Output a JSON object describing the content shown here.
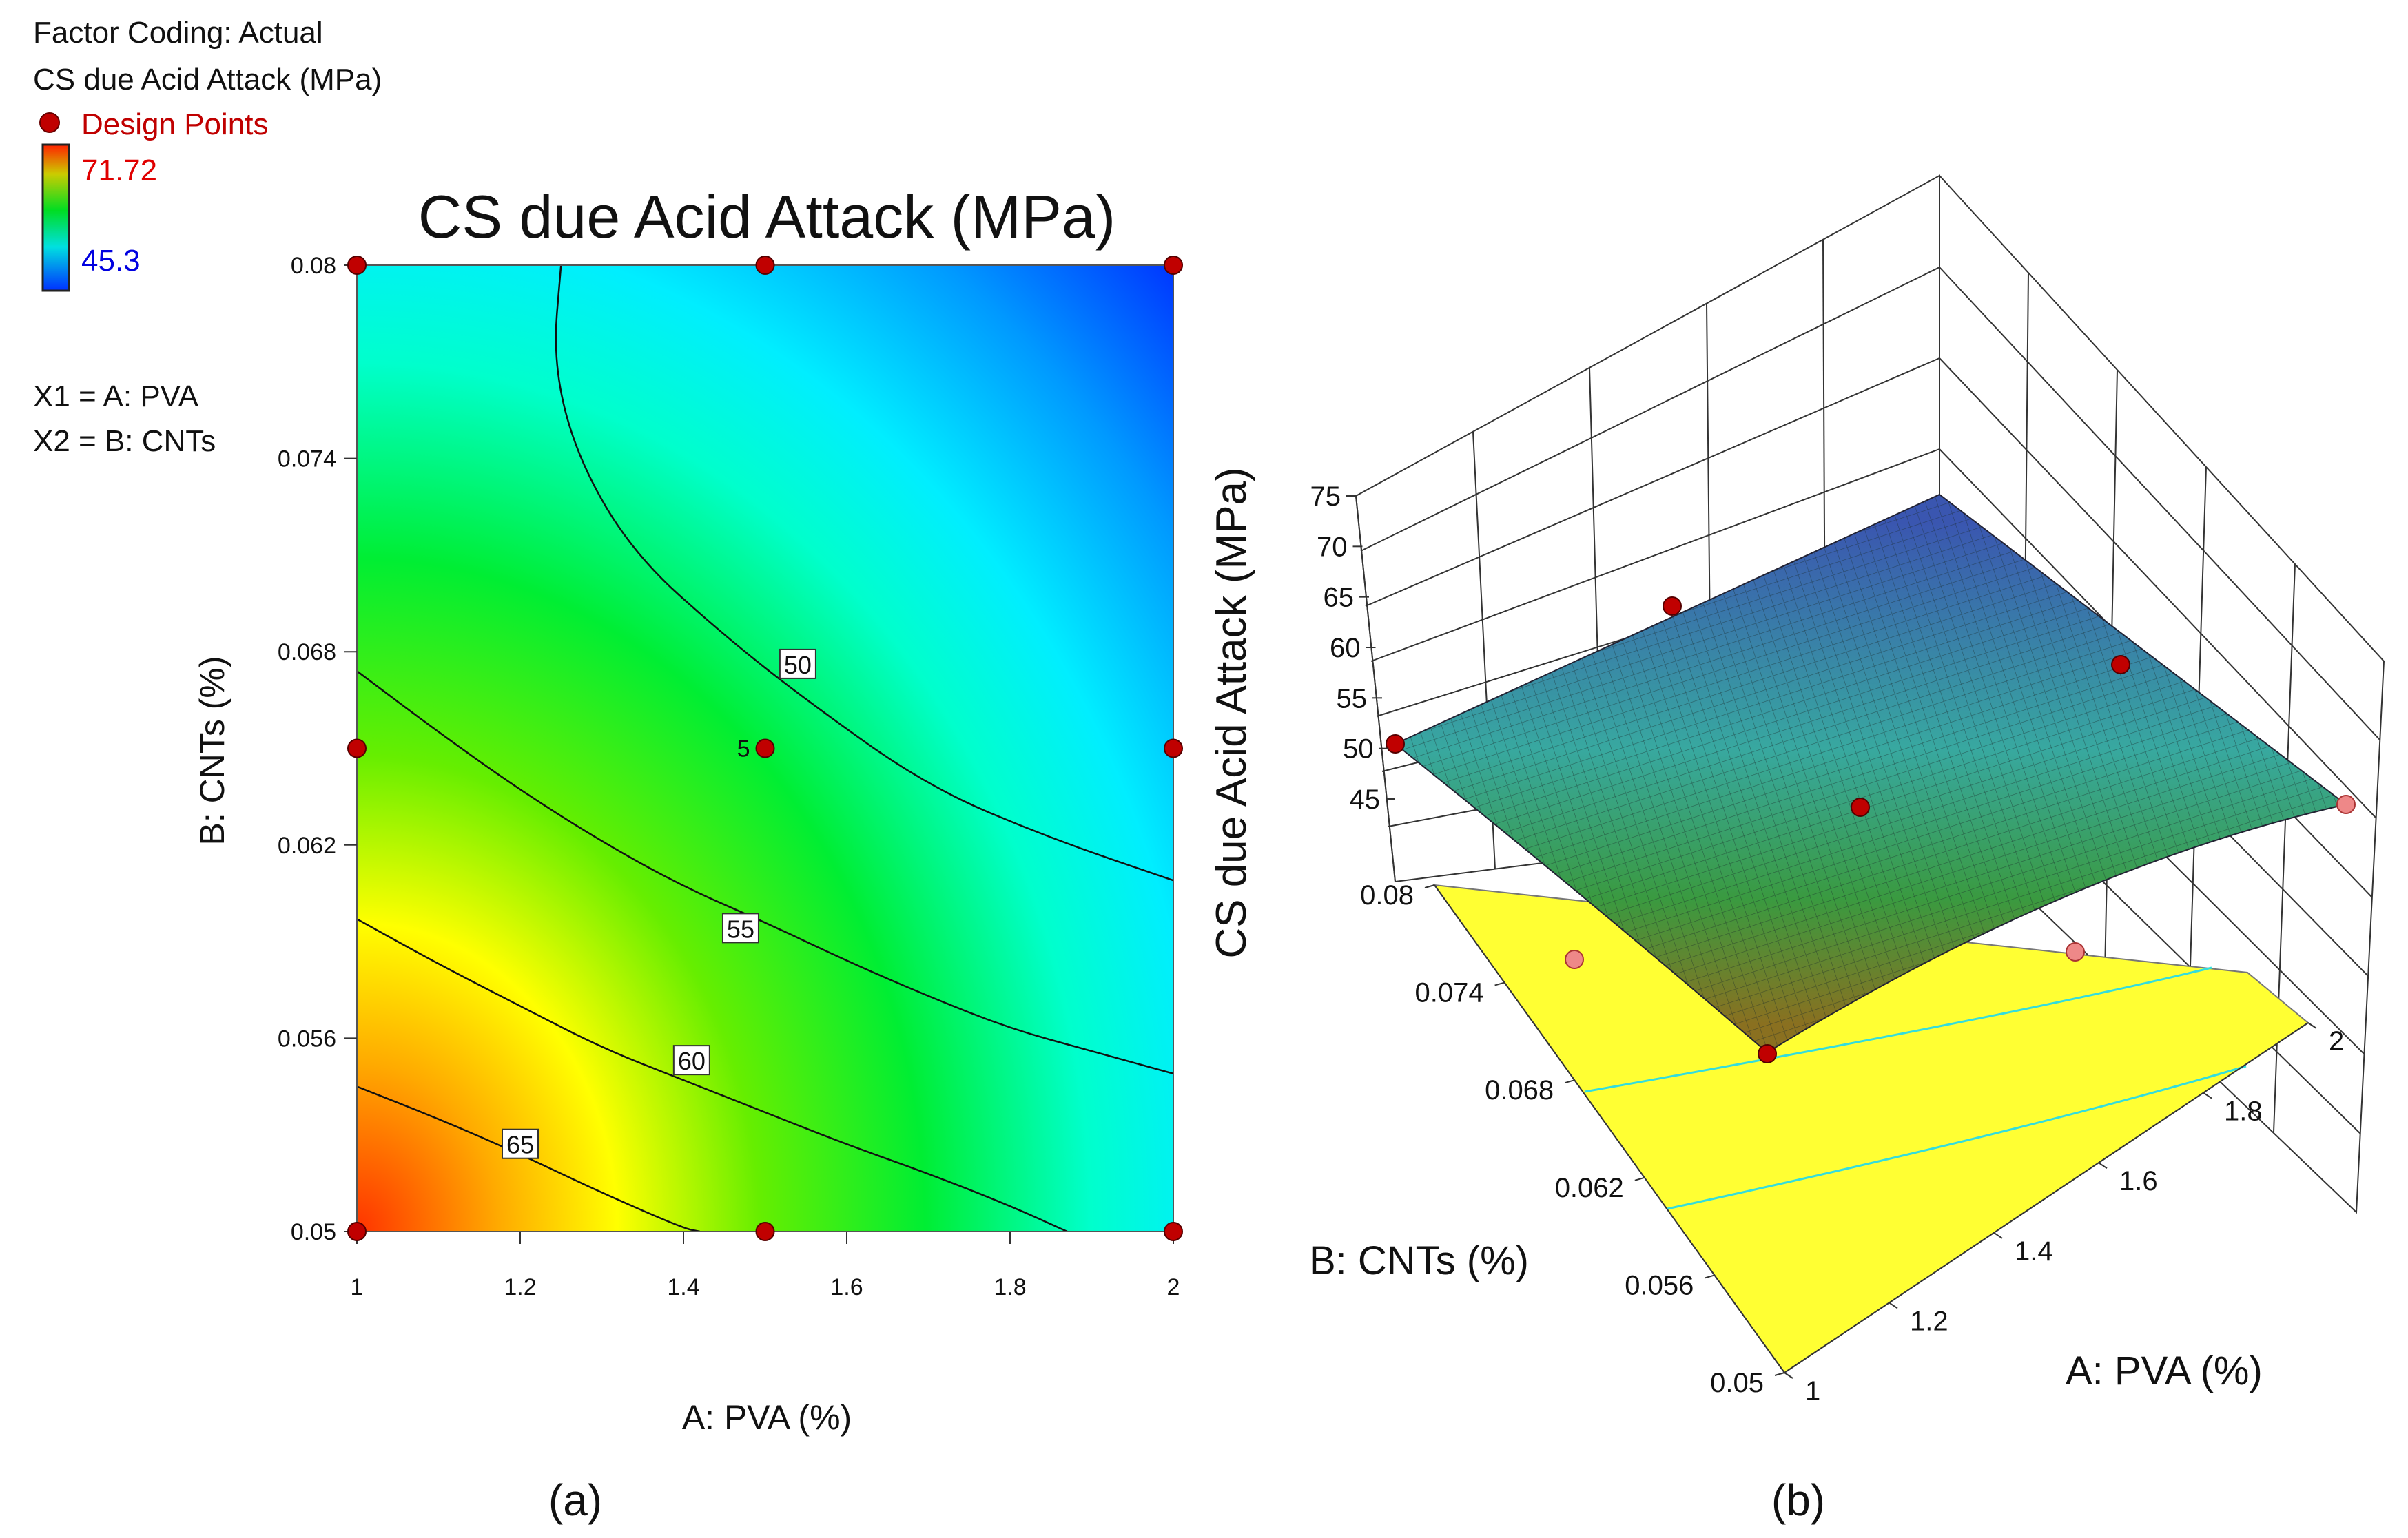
{
  "header": {
    "factor_coding": "Factor Coding: Actual",
    "response": "CS due Acid Attack (MPa)",
    "design_points": "Design Points",
    "legend_max": "71.72",
    "legend_min": "45.3",
    "x1_def": "X1 = A: PVA",
    "x2_def": "X2 = B: CNTs"
  },
  "colors": {
    "design_point": "#c00000",
    "legend_max_text": "#e00000",
    "legend_min_text": "#0000e0",
    "design_points_text": "#c00000",
    "surface_floor": "#ffff33",
    "floor_contour": "#33dddd"
  },
  "chart_data": [
    {
      "type": "contour",
      "panel_label": "(a)",
      "title": "CS due Acid Attack (MPa)",
      "xlabel": "A: PVA (%)",
      "ylabel": "B: CNTs (%)",
      "xlim": [
        1,
        2
      ],
      "ylim": [
        0.05,
        0.08
      ],
      "x_ticks": [
        "1",
        "1.2",
        "1.4",
        "1.6",
        "1.8",
        "2"
      ],
      "y_ticks": [
        "0.05",
        "0.056",
        "0.062",
        "0.068",
        "0.074",
        "0.08"
      ],
      "color_range": [
        45.3,
        71.72
      ],
      "contour_levels": [
        {
          "level": 50,
          "label": "50",
          "points": [
            [
              1.25,
              0.08
            ],
            [
              1.24,
              0.077
            ],
            [
              1.27,
              0.074
            ],
            [
              1.34,
              0.071
            ],
            [
              1.45,
              0.0685
            ],
            [
              1.55,
              0.0665
            ],
            [
              1.7,
              0.0638
            ],
            [
              1.85,
              0.0622
            ],
            [
              2.0,
              0.0609
            ]
          ],
          "label_at": [
            1.54,
            0.0676
          ]
        },
        {
          "level": 55,
          "label": "55",
          "points": [
            [
              1.0,
              0.0674
            ],
            [
              1.1,
              0.0655
            ],
            [
              1.2,
              0.0637
            ],
            [
              1.3,
              0.0621
            ],
            [
              1.4,
              0.0607
            ],
            [
              1.5,
              0.0596
            ],
            [
              1.6,
              0.0584
            ],
            [
              1.7,
              0.0573
            ],
            [
              1.8,
              0.0563
            ],
            [
              1.9,
              0.0556
            ],
            [
              2.0,
              0.0549
            ]
          ],
          "label_at": [
            1.47,
            0.0594
          ]
        },
        {
          "level": 60,
          "label": "60",
          "points": [
            [
              1.0,
              0.0597
            ],
            [
              1.1,
              0.0583
            ],
            [
              1.2,
              0.057
            ],
            [
              1.3,
              0.0557
            ],
            [
              1.4,
              0.0547
            ],
            [
              1.5,
              0.0537
            ],
            [
              1.6,
              0.0527
            ],
            [
              1.7,
              0.0518
            ],
            [
              1.8,
              0.0508
            ],
            [
              1.87,
              0.05
            ]
          ],
          "label_at": [
            1.41,
            0.0553
          ]
        },
        {
          "level": 65,
          "label": "65",
          "points": [
            [
              1.0,
              0.0545
            ],
            [
              1.1,
              0.0535
            ],
            [
              1.2,
              0.0524
            ],
            [
              1.3,
              0.0512
            ],
            [
              1.4,
              0.0501
            ],
            [
              1.42,
              0.05
            ]
          ],
          "label_at": [
            1.2,
            0.0527
          ]
        }
      ],
      "design_points": [
        [
          1,
          0.05
        ],
        [
          1.5,
          0.05
        ],
        [
          2,
          0.05
        ],
        [
          1,
          0.065
        ],
        [
          1.5,
          0.065
        ],
        [
          2,
          0.065
        ],
        [
          1,
          0.08
        ],
        [
          1.5,
          0.08
        ],
        [
          2,
          0.08
        ]
      ],
      "center_point_label": "5"
    },
    {
      "type": "surface3d",
      "panel_label": "(b)",
      "zlabel": "CS due Acid Attack (MPa)",
      "xlabel": "A: PVA (%)",
      "ylabel": "B: CNTs (%)",
      "z_ticks": [
        "45",
        "50",
        "55",
        "60",
        "65",
        "70",
        "75"
      ],
      "y_ticks": [
        "0.05",
        "0.056",
        "0.062",
        "0.068",
        "0.074",
        "0.08"
      ],
      "x_ticks": [
        "1",
        "1.2",
        "1.4",
        "1.6",
        "1.8",
        "2"
      ],
      "corner_values": {
        "pva1_cnt005": 71.7,
        "pva2_cnt005": 54.5,
        "pva1_cnt008": 54.0,
        "pva2_cnt008": 45.3
      }
    }
  ],
  "captions": {
    "a": "(a)",
    "b": "(b)"
  }
}
